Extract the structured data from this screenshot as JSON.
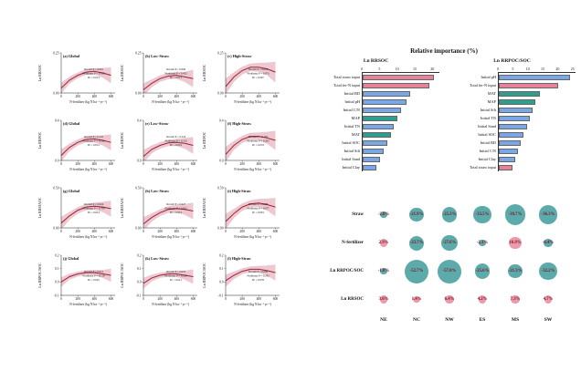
{
  "colors": {
    "background": "#ffffff",
    "band": "#e7b6c1",
    "curve": "#9b2335",
    "axis": "#222222",
    "bar_blue": "#7aa7e8",
    "bar_pink": "#e8829a",
    "bar_green": "#2f9e8f",
    "bubble_teal": "#3f9b9b",
    "bubble_pink": "#e8899e",
    "pct_text": "#7a1220"
  },
  "chart_data": [
    {
      "type": "line",
      "name": "dose_response_panels",
      "xlabel": "N-fertilizer (kg N ha⁻¹ yr⁻¹)",
      "xlim": [
        0,
        650
      ],
      "x_ticks": [
        0,
        200,
        400,
        600
      ],
      "x_samples": [
        0,
        100,
        200,
        300,
        400,
        500,
        600
      ],
      "rows": [
        {
          "ylabel": "Ln RRSOC",
          "ylim": [
            0,
            0.25
          ],
          "yticks": [
            "0.00",
            "0.25"
          ]
        },
        {
          "ylabel": "Ln RRPOC",
          "ylim": [
            0,
            0.4
          ],
          "yticks": [
            "0.0",
            "0.4"
          ]
        },
        {
          "ylabel": "Ln RRMAOC",
          "ylim": [
            0,
            0.5
          ],
          "yticks": [
            "0.00",
            "0.50"
          ]
        },
        {
          "ylabel": "Ln RRPOC/SOC",
          "ylim": [
            -0.1,
            0.2
          ],
          "yticks": [
            "-0.1",
            "0.0",
            "0.1",
            "0.2"
          ]
        }
      ],
      "panels": [
        {
          "tag": "(a)",
          "group": "Global",
          "row": 0,
          "stats": [
            "Overall P = 0.001",
            "Nonlinear P = 0.185",
            "R² = 0.013"
          ],
          "y": [
            0.03,
            0.08,
            0.11,
            0.13,
            0.135,
            0.125,
            0.11
          ],
          "band": [
            0.035,
            0.022,
            0.018,
            0.018,
            0.02,
            0.03,
            0.05
          ]
        },
        {
          "tag": "(b)",
          "group": "Low-Straw",
          "row": 0,
          "stats": [
            "Overall P = 0.006",
            "Nonlinear P = 0.452",
            "R² = 0.011"
          ],
          "y": [
            0.02,
            0.06,
            0.09,
            0.105,
            0.11,
            0.1,
            0.09
          ],
          "band": [
            0.04,
            0.025,
            0.02,
            0.02,
            0.022,
            0.032,
            0.055
          ]
        },
        {
          "tag": "(c)",
          "group": "High-Straw",
          "row": 0,
          "stats": [
            "Overall P = 0.016",
            "Nonlinear P = 0.073",
            "R² = 0.097"
          ],
          "y": [
            0.04,
            0.1,
            0.14,
            0.16,
            0.16,
            0.15,
            0.13
          ],
          "band": [
            0.05,
            0.03,
            0.024,
            0.024,
            0.028,
            0.04,
            0.065
          ]
        },
        {
          "tag": "(d)",
          "group": "Global",
          "row": 1,
          "stats": [
            "Overall P = 0.147",
            "Nonlinear P = 0.126",
            "R² = 0.012"
          ],
          "y": [
            0.05,
            0.13,
            0.18,
            0.21,
            0.215,
            0.2,
            0.18
          ],
          "band": [
            0.06,
            0.038,
            0.03,
            0.03,
            0.034,
            0.05,
            0.08
          ]
        },
        {
          "tag": "(e)",
          "group": "Low-Straw",
          "row": 1,
          "stats": [
            "Overall P = 0.516",
            "Nonlinear P = 0.132",
            "R² = 0.019"
          ],
          "y": [
            0.04,
            0.11,
            0.15,
            0.175,
            0.18,
            0.17,
            0.15
          ],
          "band": [
            0.065,
            0.04,
            0.032,
            0.032,
            0.036,
            0.055,
            0.085
          ]
        },
        {
          "tag": "(f)",
          "group": "High-Straw",
          "row": 1,
          "stats": [
            "Overall P = 0.102",
            "Nonlinear P = 0.263",
            "R² = 0.053"
          ],
          "y": [
            0.06,
            0.15,
            0.21,
            0.24,
            0.24,
            0.225,
            0.2
          ],
          "band": [
            0.075,
            0.045,
            0.036,
            0.036,
            0.04,
            0.06,
            0.095
          ]
        },
        {
          "tag": "(g)",
          "group": "Global",
          "row": 2,
          "stats": [
            "Overall P = 0.024",
            "Nonlinear P = 0.709",
            "R² = 0.014"
          ],
          "y": [
            0.06,
            0.15,
            0.22,
            0.26,
            0.27,
            0.26,
            0.24
          ],
          "band": [
            0.08,
            0.05,
            0.04,
            0.04,
            0.045,
            0.065,
            0.1
          ]
        },
        {
          "tag": "(h)",
          "group": "Low-Straw",
          "row": 2,
          "stats": [
            "Overall P = 0.027",
            "Nonlinear P = 0.652",
            "R² = 0.012"
          ],
          "y": [
            0.05,
            0.13,
            0.19,
            0.23,
            0.24,
            0.23,
            0.21
          ],
          "band": [
            0.085,
            0.052,
            0.042,
            0.042,
            0.047,
            0.068,
            0.105
          ]
        },
        {
          "tag": "(i)",
          "group": "High-Straw",
          "row": 2,
          "stats": [
            "Overall P = 0.008",
            "Nonlinear P = 0.077",
            "R² = 0.091"
          ],
          "y": [
            0.08,
            0.18,
            0.26,
            0.3,
            0.31,
            0.29,
            0.26
          ],
          "band": [
            0.095,
            0.058,
            0.046,
            0.046,
            0.052,
            0.075,
            0.115
          ]
        },
        {
          "tag": "(j)",
          "group": "Global",
          "row": 3,
          "stats": [
            "Overall P = 0.012",
            "Nonlinear P = 0.118",
            "R² = 0.025"
          ],
          "y": [
            0.0,
            0.04,
            0.06,
            0.07,
            0.07,
            0.06,
            0.05
          ],
          "band": [
            0.035,
            0.022,
            0.018,
            0.018,
            0.02,
            0.03,
            0.05
          ]
        },
        {
          "tag": "(k)",
          "group": "Low-Straw",
          "row": 3,
          "stats": [
            "Overall P = 0.037",
            "Nonlinear P = 0.128",
            "R² = 0.021"
          ],
          "y": [
            -0.01,
            0.03,
            0.05,
            0.06,
            0.06,
            0.05,
            0.04
          ],
          "band": [
            0.04,
            0.025,
            0.02,
            0.02,
            0.022,
            0.034,
            0.055
          ]
        },
        {
          "tag": "(l)",
          "group": "High-Straw",
          "row": 3,
          "stats": [
            "Overall P = 0.006",
            "Nonlinear P = 0.242",
            "R² = 0.078"
          ],
          "y": [
            0.01,
            0.05,
            0.08,
            0.095,
            0.095,
            0.085,
            0.07
          ],
          "band": [
            0.045,
            0.028,
            0.022,
            0.022,
            0.026,
            0.038,
            0.06
          ]
        }
      ]
    },
    {
      "type": "bar",
      "name": "relative_importance",
      "title": "Relative importance (%)",
      "charts": [
        {
          "name": "Ln RRSOC",
          "xmax": 22,
          "xticks": [
            0,
            5,
            10,
            15,
            20
          ],
          "items": [
            {
              "label": "Total straw input",
              "value": 20.5,
              "color": "pink"
            },
            {
              "label": "Total fer-N input",
              "value": 19.0,
              "color": "pink"
            },
            {
              "label": "Initial BD",
              "value": 13.5,
              "color": "blue"
            },
            {
              "label": "Initial pH",
              "value": 12.5,
              "color": "blue"
            },
            {
              "label": "Initial C/N",
              "value": 11.0,
              "color": "blue"
            },
            {
              "label": "MAP",
              "value": 10.0,
              "color": "green"
            },
            {
              "label": "Initial TN",
              "value": 9.0,
              "color": "blue"
            },
            {
              "label": "MAT",
              "value": 8.0,
              "color": "green"
            },
            {
              "label": "Initial SOC",
              "value": 7.0,
              "color": "blue"
            },
            {
              "label": "Initial Silt",
              "value": 6.0,
              "color": "blue"
            },
            {
              "label": "Initial Sand",
              "value": 5.0,
              "color": "blue"
            },
            {
              "label": "Initial Clay",
              "value": 4.0,
              "color": "blue"
            }
          ]
        },
        {
          "name": "Ln RRPOC/SOC",
          "xmax": 26,
          "xticks": [
            0,
            5,
            10,
            15,
            20,
            25
          ],
          "items": [
            {
              "label": "Initial pH",
              "value": 24.0,
              "color": "blue"
            },
            {
              "label": "Total fer-N input",
              "value": 20.0,
              "color": "pink"
            },
            {
              "label": "MAT",
              "value": 14.0,
              "color": "green"
            },
            {
              "label": "MAP",
              "value": 12.5,
              "color": "green"
            },
            {
              "label": "Initial Silt",
              "value": 11.5,
              "color": "blue"
            },
            {
              "label": "Initial TN",
              "value": 10.5,
              "color": "blue"
            },
            {
              "label": "Initial Sand",
              "value": 9.5,
              "color": "blue"
            },
            {
              "label": "Initial SOC",
              "value": 8.5,
              "color": "blue"
            },
            {
              "label": "Initial BD",
              "value": 7.5,
              "color": "blue"
            },
            {
              "label": "Initial C/N",
              "value": 6.5,
              "color": "blue"
            },
            {
              "label": "Initial Clay",
              "value": 5.5,
              "color": "blue"
            },
            {
              "label": "Total straw input",
              "value": 4.5,
              "color": "pink"
            }
          ]
        }
      ]
    },
    {
      "type": "heatmap",
      "name": "regional_effects_bubble_matrix",
      "unit": "%",
      "rows": [
        "Straw",
        "N-fertilizer",
        "Ln RRPOC/SOC",
        "Ln RRSOC"
      ],
      "columns": [
        "NE",
        "NC",
        "NW",
        "ES",
        "MS",
        "SW"
      ],
      "values": [
        [
          -2.0,
          -21.9,
          -25.3,
          -33.5,
          -39.7,
          -36.3
        ],
        [
          2.9,
          -23.7,
          -27.6,
          -2.1,
          16.9,
          -6.4
        ],
        [
          -1.0,
          -52.7,
          -57.8,
          -25.6,
          -21.3,
          -32.2
        ],
        [
          3.6,
          1.4,
          6.4,
          4.2,
          7.3,
          4.7
        ]
      ]
    }
  ]
}
